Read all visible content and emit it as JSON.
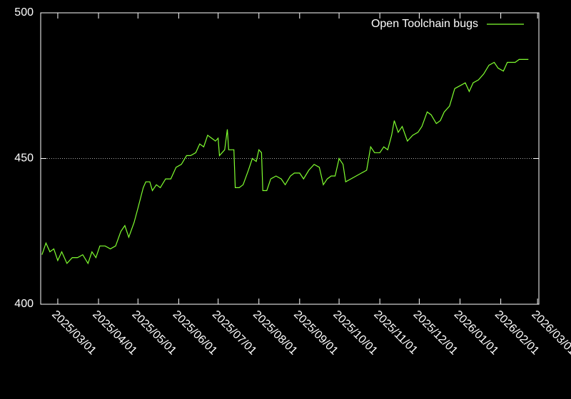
{
  "chart_data": {
    "type": "line",
    "x": [
      "2025-02-17",
      "2025-02-20",
      "2025-02-23",
      "2025-02-26",
      "2025-03-01",
      "2025-03-04",
      "2025-03-08",
      "2025-03-12",
      "2025-03-16",
      "2025-03-20",
      "2025-03-24",
      "2025-03-27",
      "2025-03-30",
      "2025-04-02",
      "2025-04-06",
      "2025-04-10",
      "2025-04-14",
      "2025-04-18",
      "2025-04-21",
      "2025-04-24",
      "2025-04-28",
      "2025-05-01",
      "2025-05-05",
      "2025-05-07",
      "2025-05-10",
      "2025-05-12",
      "2025-05-15",
      "2025-05-18",
      "2025-05-22",
      "2025-05-26",
      "2025-05-30",
      "2025-06-03",
      "2025-06-07",
      "2025-06-10",
      "2025-06-14",
      "2025-06-17",
      "2025-06-20",
      "2025-06-23",
      "2025-06-26",
      "2025-06-29",
      "2025-07-01",
      "2025-07-02",
      "2025-07-06",
      "2025-07-08",
      "2025-07-09",
      "2025-07-13",
      "2025-07-14",
      "2025-07-17",
      "2025-07-20",
      "2025-07-24",
      "2025-07-27",
      "2025-07-30",
      "2025-08-01",
      "2025-08-03",
      "2025-08-04",
      "2025-08-07",
      "2025-08-10",
      "2025-08-14",
      "2025-08-18",
      "2025-08-21",
      "2025-08-25",
      "2025-08-28",
      "2025-09-01",
      "2025-09-04",
      "2025-09-08",
      "2025-09-12",
      "2025-09-16",
      "2025-09-19",
      "2025-09-22",
      "2025-09-25",
      "2025-09-28",
      "2025-10-01",
      "2025-10-04",
      "2025-10-06",
      "2025-10-10",
      "2025-10-14",
      "2025-10-18",
      "2025-10-22",
      "2025-10-25",
      "2025-10-28",
      "2025-11-01",
      "2025-11-04",
      "2025-11-07",
      "2025-11-10",
      "2025-11-12",
      "2025-11-15",
      "2025-11-18",
      "2025-11-22",
      "2025-11-26",
      "2025-11-30",
      "2025-12-03",
      "2025-12-07",
      "2025-12-10",
      "2025-12-14",
      "2025-12-17",
      "2025-12-20",
      "2025-12-24",
      "2025-12-28",
      "2026-01-01",
      "2026-01-05",
      "2026-01-08",
      "2026-01-11",
      "2026-01-15",
      "2026-01-19",
      "2026-01-23",
      "2026-01-27",
      "2026-01-30",
      "2026-02-03",
      "2026-02-06",
      "2026-02-09",
      "2026-02-12",
      "2026-02-15",
      "2026-02-19",
      "2026-02-22"
    ],
    "series": [
      {
        "name": "Open Toolchain bugs",
        "color": "#80ff30",
        "values": [
          417,
          421,
          418,
          419,
          415,
          418,
          414,
          416,
          416,
          417,
          414,
          418,
          416,
          420,
          420,
          419,
          420,
          425,
          427,
          423,
          428,
          433,
          440,
          442,
          442,
          439,
          441,
          440,
          443,
          443,
          447,
          448,
          451,
          451,
          452,
          455,
          454,
          458,
          457,
          456,
          457,
          451,
          453,
          460,
          453,
          453,
          440,
          440,
          441,
          446,
          450,
          449,
          453,
          452,
          439,
          439,
          443,
          444,
          443,
          441,
          444,
          445,
          445,
          443,
          446,
          448,
          447,
          441,
          443,
          444,
          444,
          450,
          448,
          442,
          443,
          444,
          445,
          446,
          454,
          452,
          452,
          454,
          453,
          458,
          463,
          459,
          461,
          456,
          458,
          459,
          461,
          466,
          465,
          462,
          463,
          466,
          468,
          474,
          475,
          476,
          473,
          476,
          477,
          479,
          482,
          483,
          481,
          480,
          483,
          483,
          483,
          484,
          484,
          484
        ]
      }
    ],
    "xlim": [
      "2025-02-16",
      "2026-03-02"
    ],
    "xticks": [
      {
        "value": "2025-03-01",
        "label": "2025/03/01"
      },
      {
        "value": "2025-04-01",
        "label": "2025/04/01"
      },
      {
        "value": "2025-05-01",
        "label": "2025/05/01"
      },
      {
        "value": "2025-06-01",
        "label": "2025/06/01"
      },
      {
        "value": "2025-07-01",
        "label": "2025/07/01"
      },
      {
        "value": "2025-08-01",
        "label": "2025/08/01"
      },
      {
        "value": "2025-09-01",
        "label": "2025/09/01"
      },
      {
        "value": "2025-10-01",
        "label": "2025/10/01"
      },
      {
        "value": "2025-11-01",
        "label": "2025/11/01"
      },
      {
        "value": "2025-12-01",
        "label": "2025/12/01"
      },
      {
        "value": "2026-01-01",
        "label": "2026/01/01"
      },
      {
        "value": "2026-02-01",
        "label": "2026/02/01"
      },
      {
        "value": "2026-03-01",
        "label": "2026/03/01"
      }
    ],
    "ylim": [
      400,
      500
    ],
    "yticks": [
      400,
      450,
      500
    ],
    "ref_line": 450,
    "legend": "top-right"
  }
}
